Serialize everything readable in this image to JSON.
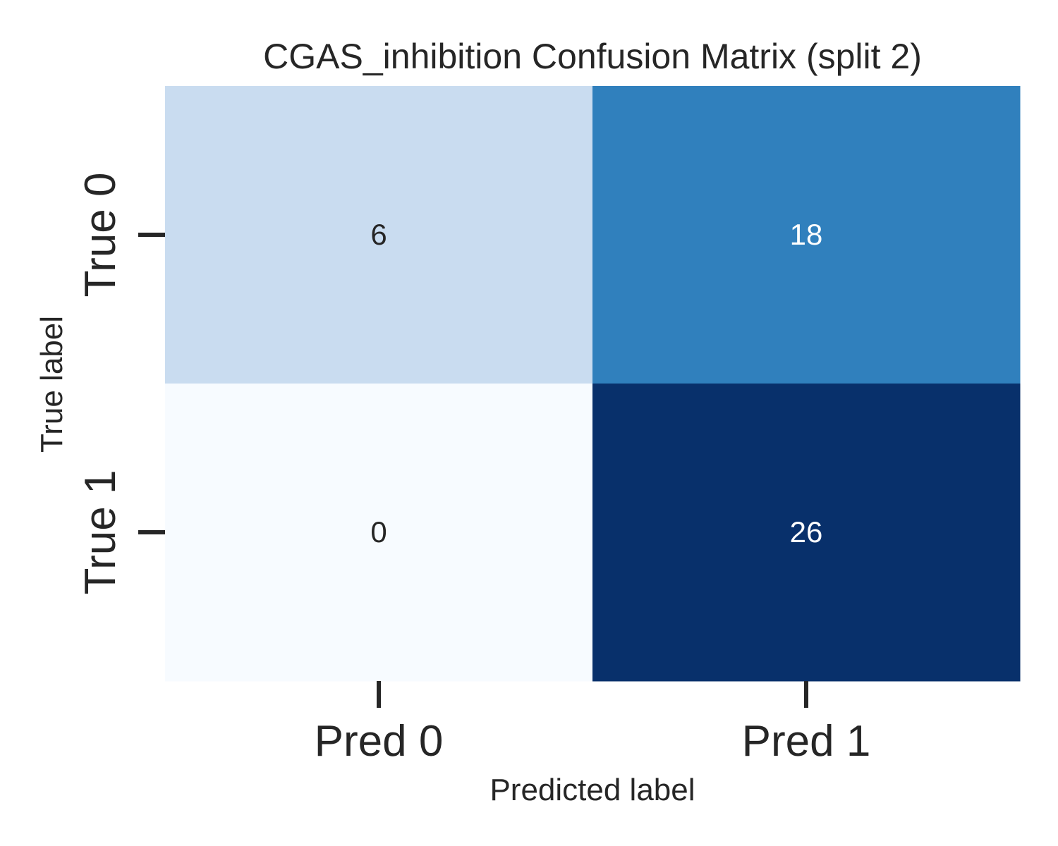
{
  "chart_data": {
    "type": "heatmap",
    "title": "CGAS_inhibition Confusion Matrix (split 2)",
    "xlabel": "Predicted label",
    "ylabel": "True label",
    "x_categories": [
      "Pred 0",
      "Pred 1"
    ],
    "y_categories": [
      "True 0",
      "True 1"
    ],
    "values": [
      [
        6,
        18
      ],
      [
        0,
        26
      ]
    ],
    "colormap": "Blues",
    "vmin": 0,
    "vmax": 26,
    "colorbar": false,
    "grid": false,
    "cell_colors": [
      [
        "#c9dcf0",
        "#3080bd"
      ],
      [
        "#f7fbff",
        "#08306b"
      ]
    ],
    "cell_text_colors": [
      [
        "#262626",
        "#ffffff"
      ],
      [
        "#262626",
        "#ffffff"
      ]
    ]
  }
}
